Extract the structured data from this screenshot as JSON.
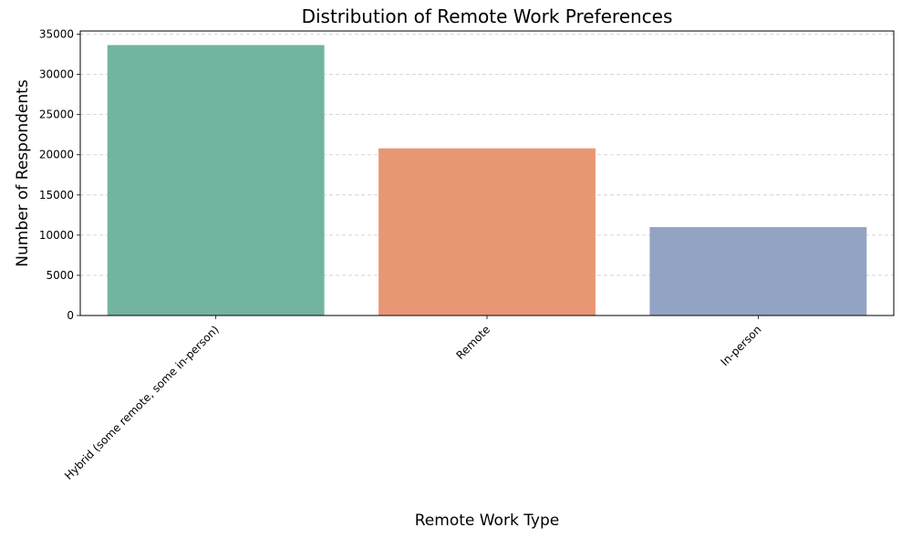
{
  "chart_data": {
    "type": "bar",
    "title": "Distribution of Remote Work Preferences",
    "xlabel": "Remote Work Type",
    "ylabel": "Number of Respondents",
    "categories": [
      "Hybrid (some remote, some in-person)",
      "Remote",
      "In-person"
    ],
    "values": [
      33650,
      20800,
      11000
    ],
    "colors": [
      "#72b4a0",
      "#e89775",
      "#93a3c3"
    ],
    "ylim": [
      0,
      35400
    ],
    "yticks": [
      0,
      5000,
      10000,
      15000,
      20000,
      25000,
      30000,
      35000
    ],
    "grid": "y-dashed",
    "x_tick_rotation": "45 degrees"
  }
}
